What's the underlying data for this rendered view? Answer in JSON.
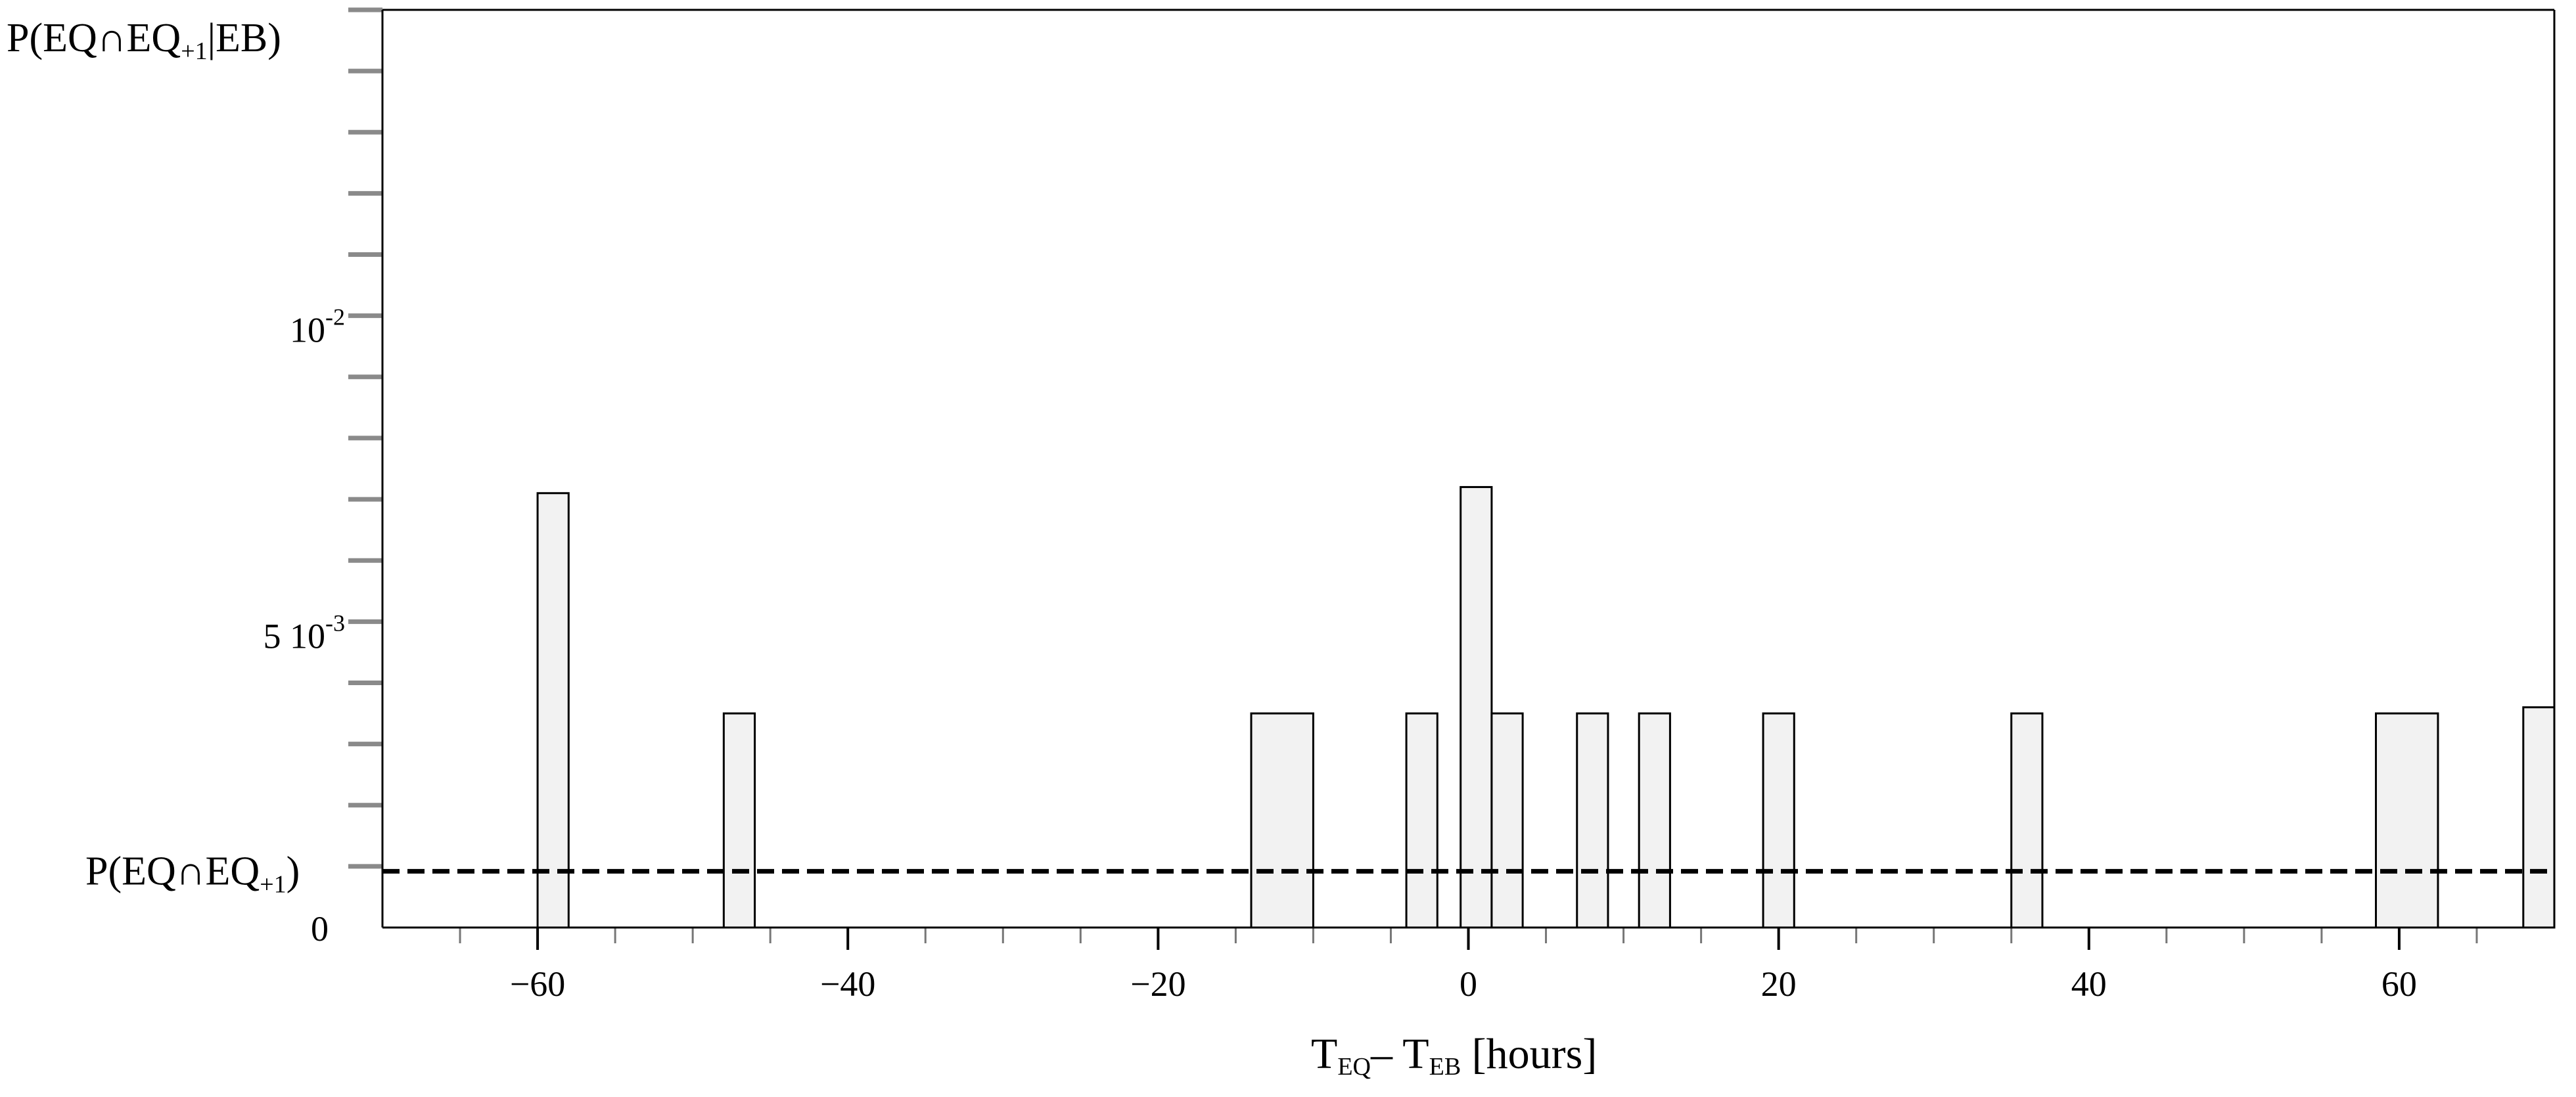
{
  "chart_data": {
    "type": "bar",
    "bars": [
      {
        "x0": -60,
        "x1": -58,
        "y": 0.0071
      },
      {
        "x0": -48,
        "x1": -46,
        "y": 0.0035
      },
      {
        "x0": -14,
        "x1": -10,
        "y": 0.0035
      },
      {
        "x0": -4,
        "x1": -2,
        "y": 0.0035
      },
      {
        "x0": -0.5,
        "x1": 1.5,
        "y": 0.0072
      },
      {
        "x0": 1.5,
        "x1": 3.5,
        "y": 0.0035
      },
      {
        "x0": 7,
        "x1": 9,
        "y": 0.0035
      },
      {
        "x0": 11,
        "x1": 13,
        "y": 0.0035
      },
      {
        "x0": 19,
        "x1": 21,
        "y": 0.0035
      },
      {
        "x0": 35,
        "x1": 37,
        "y": 0.0035
      },
      {
        "x0": 58.5,
        "x1": 62.5,
        "y": 0.0035
      },
      {
        "x0": 68,
        "x1": 70,
        "y": 0.0036
      }
    ],
    "baseline_value": 0.00092,
    "xlim": [
      -70,
      70
    ],
    "ylim": [
      0,
      0.015
    ],
    "x_ticks": [
      -60,
      -40,
      -20,
      0,
      20,
      40,
      60
    ],
    "x_tick_labels": [
      "−60",
      "−40",
      "−20",
      "0",
      "20",
      "40",
      "60"
    ],
    "y_minor_step": 0.001,
    "y_labels": {
      "zero": "0",
      "mid_mantissa": "5 10",
      "mid_exponent": "-3",
      "top_base": "10",
      "top_exponent": "-2"
    },
    "ylabel": {
      "p1": "P(EQ∩EQ",
      "sub": "+1",
      "p2": "|EB)"
    },
    "baseline_label": {
      "p1": "P(EQ∩EQ",
      "sub": "+1",
      "p2": ")"
    },
    "xlabel": {
      "t1": "T",
      "sub1": "EQ",
      "mid": "– T",
      "sub2": "EB",
      "rest": " [hours]"
    },
    "colors": {
      "bar_fill": "#f2f2f2",
      "bar_stroke": "#000000",
      "axis": "#000000",
      "tick": "#8a8a8a"
    },
    "grid": false,
    "legend": "none"
  }
}
